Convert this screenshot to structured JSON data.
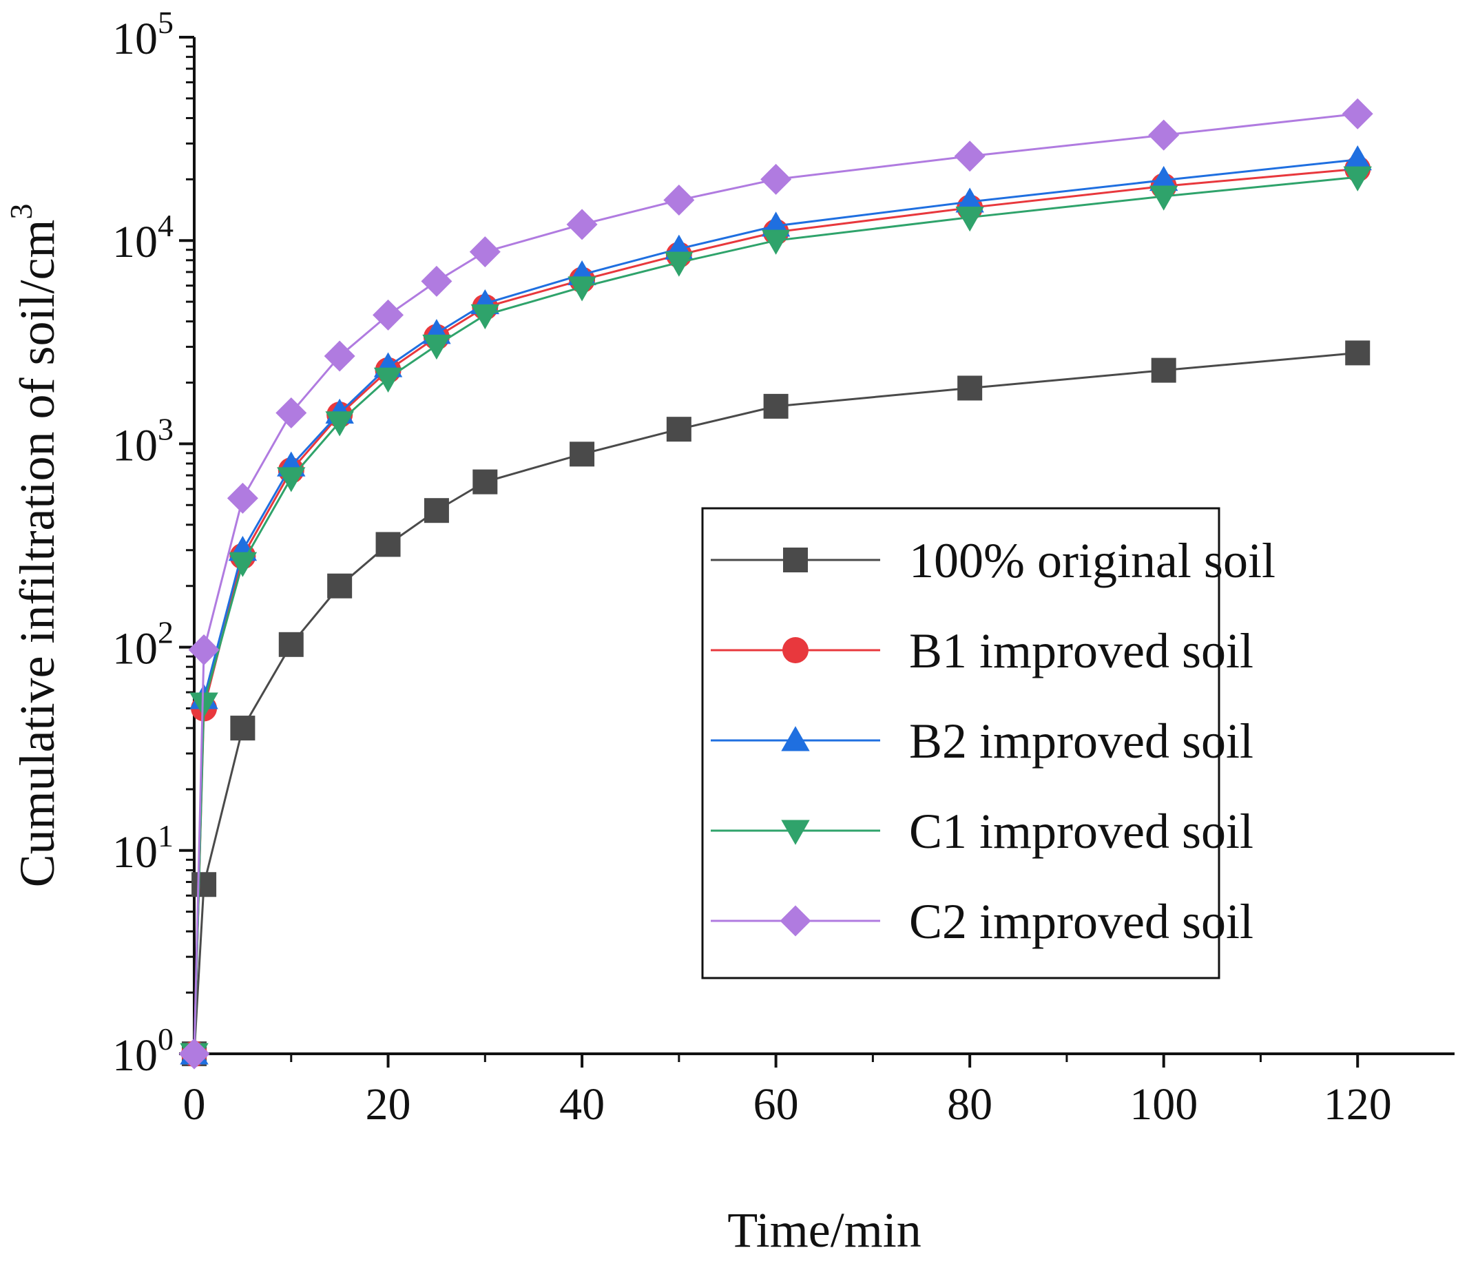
{
  "chart_data": {
    "type": "line",
    "title": "",
    "xlabel": "Time/min",
    "ylabel_main": "Cumulative infiltration of soil/cm",
    "ylabel_sup": "3",
    "yscale": "log",
    "xlim": [
      0,
      130
    ],
    "ylim": [
      1,
      100000
    ],
    "x_ticks": [
      0,
      20,
      40,
      60,
      80,
      100,
      120
    ],
    "y_ticks": [
      {
        "value": 1,
        "base": "10",
        "exp": "0"
      },
      {
        "value": 10,
        "base": "10",
        "exp": "1"
      },
      {
        "value": 100,
        "base": "10",
        "exp": "2"
      },
      {
        "value": 1000,
        "base": "10",
        "exp": "3"
      },
      {
        "value": 10000,
        "base": "10",
        "exp": "4"
      },
      {
        "value": 100000,
        "base": "10",
        "exp": "5"
      }
    ],
    "x": [
      0,
      1,
      5,
      10,
      15,
      20,
      25,
      30,
      40,
      50,
      60,
      80,
      100,
      120
    ],
    "legend_position": "center-right",
    "series": [
      {
        "name": "100% original soil",
        "marker": "square",
        "color": "#4a4a4a",
        "values": [
          1,
          6.8,
          40,
          103,
          200,
          320,
          470,
          650,
          890,
          1180,
          1530,
          1880,
          2300,
          2800
        ]
      },
      {
        "name": "B1 improved soil",
        "marker": "circle",
        "color": "#e8383d",
        "values": [
          1,
          50,
          280,
          740,
          1390,
          2300,
          3350,
          4700,
          6400,
          8500,
          11000,
          14500,
          18500,
          22500
        ]
      },
      {
        "name": "B2 improved soil",
        "marker": "triangle-up",
        "color": "#1f6fe0",
        "values": [
          1,
          56,
          300,
          780,
          1420,
          2400,
          3500,
          4900,
          6800,
          9100,
          11800,
          15500,
          19800,
          25000
        ]
      },
      {
        "name": "C1 improved soil",
        "marker": "triangle-down",
        "color": "#2fa36b",
        "values": [
          1,
          53,
          260,
          680,
          1280,
          2100,
          3050,
          4300,
          5900,
          7800,
          10000,
          13000,
          16500,
          20500
        ]
      },
      {
        "name": "C2 improved soil",
        "marker": "diamond",
        "color": "#b07be0",
        "values": [
          1,
          97,
          540,
          1420,
          2700,
          4300,
          6300,
          8800,
          12000,
          15800,
          20000,
          26000,
          33000,
          42000
        ]
      }
    ]
  }
}
